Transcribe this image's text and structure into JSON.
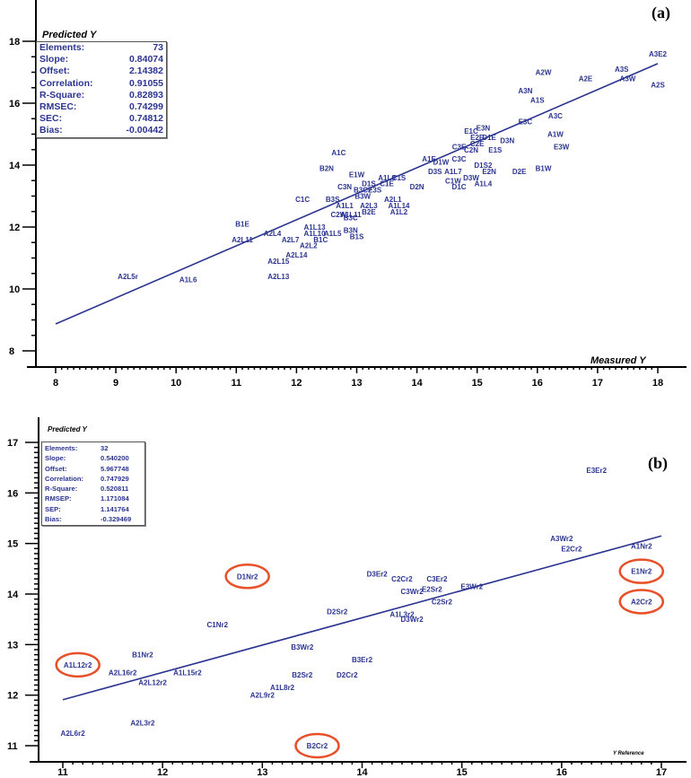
{
  "chart_data": [
    {
      "panel": "(a)",
      "type": "scatter",
      "xlabel": "Measured Y",
      "ylabel": "Predicted Y",
      "xlim": [
        7.7,
        18.2
      ],
      "ylim": [
        7.5,
        19.4
      ],
      "xticks": [
        8,
        9,
        10,
        11,
        12,
        13,
        14,
        15,
        16,
        17,
        18
      ],
      "yticks": [
        8,
        10,
        12,
        14,
        16,
        18
      ],
      "stats": {
        "Elements:": "73",
        "Slope:": "0.84074",
        "Offset:": "2.14382",
        "Correlation:": "0.91055",
        "R-Square:": "0.82893",
        "RMSEC:": "0.74299",
        "SEC:": "0.74812",
        "Bias:": "-0.00442"
      },
      "fit_line": {
        "x": [
          8.0,
          18.0
        ],
        "y": [
          8.87,
          17.28
        ]
      },
      "points": [
        {
          "label": "A2L5r",
          "x": 9.2,
          "y": 10.4
        },
        {
          "label": "A1L6",
          "x": 10.2,
          "y": 10.3
        },
        {
          "label": "A2L13",
          "x": 11.7,
          "y": 10.4
        },
        {
          "label": "A2L15",
          "x": 11.7,
          "y": 10.9
        },
        {
          "label": "A2L14",
          "x": 12.0,
          "y": 11.1
        },
        {
          "label": "A2L11",
          "x": 11.1,
          "y": 11.6
        },
        {
          "label": "B1E",
          "x": 11.1,
          "y": 12.1
        },
        {
          "label": "A2L4",
          "x": 11.6,
          "y": 11.8
        },
        {
          "label": "A2L7",
          "x": 11.9,
          "y": 11.6
        },
        {
          "label": "A2L2",
          "x": 12.2,
          "y": 11.4
        },
        {
          "label": "A1L13",
          "x": 12.3,
          "y": 12.0
        },
        {
          "label": "A1L10",
          "x": 12.3,
          "y": 11.8
        },
        {
          "label": "A1L5",
          "x": 12.6,
          "y": 11.8
        },
        {
          "label": "B1C",
          "x": 12.4,
          "y": 11.6
        },
        {
          "label": "C1C",
          "x": 12.1,
          "y": 12.9
        },
        {
          "label": "B3N",
          "x": 12.9,
          "y": 11.9
        },
        {
          "label": "B1S",
          "x": 13.0,
          "y": 11.7
        },
        {
          "label": "B3C",
          "x": 12.9,
          "y": 12.3
        },
        {
          "label": "C2W",
          "x": 12.7,
          "y": 12.4
        },
        {
          "label": "A1L11",
          "x": 12.9,
          "y": 12.4
        },
        {
          "label": "A1L1",
          "x": 12.8,
          "y": 12.7
        },
        {
          "label": "B3S",
          "x": 12.6,
          "y": 12.9
        },
        {
          "label": "A2L3",
          "x": 13.2,
          "y": 12.7
        },
        {
          "label": "B2E",
          "x": 13.2,
          "y": 12.5
        },
        {
          "label": "C3N",
          "x": 12.8,
          "y": 13.3
        },
        {
          "label": "B3W",
          "x": 13.1,
          "y": 13.0
        },
        {
          "label": "B3C2",
          "x": 13.1,
          "y": 13.2
        },
        {
          "label": "E3S",
          "x": 13.3,
          "y": 13.2
        },
        {
          "label": "D1S",
          "x": 13.2,
          "y": 13.4
        },
        {
          "label": "C1E",
          "x": 13.5,
          "y": 13.4
        },
        {
          "label": "A2L1",
          "x": 13.6,
          "y": 12.9
        },
        {
          "label": "A1L14",
          "x": 13.7,
          "y": 12.7
        },
        {
          "label": "A1L2",
          "x": 13.7,
          "y": 12.5
        },
        {
          "label": "E1W",
          "x": 13.0,
          "y": 13.7
        },
        {
          "label": "A1L9",
          "x": 13.5,
          "y": 13.6
        },
        {
          "label": "C1S",
          "x": 13.7,
          "y": 13.6
        },
        {
          "label": "B2N",
          "x": 12.5,
          "y": 13.9
        },
        {
          "label": "A1C",
          "x": 12.7,
          "y": 14.4
        },
        {
          "label": "D2N",
          "x": 14.0,
          "y": 13.3
        },
        {
          "label": "A1E",
          "x": 14.2,
          "y": 14.2
        },
        {
          "label": "D1W",
          "x": 14.4,
          "y": 14.1
        },
        {
          "label": "D3S",
          "x": 14.3,
          "y": 13.8
        },
        {
          "label": "A1L7",
          "x": 14.6,
          "y": 13.8
        },
        {
          "label": "C3C",
          "x": 14.7,
          "y": 14.2
        },
        {
          "label": "C1W",
          "x": 14.6,
          "y": 13.5
        },
        {
          "label": "D3W",
          "x": 14.9,
          "y": 13.6
        },
        {
          "label": "D1C",
          "x": 14.7,
          "y": 13.3
        },
        {
          "label": "A1L4",
          "x": 15.1,
          "y": 13.4
        },
        {
          "label": "C3E",
          "x": 14.7,
          "y": 14.6
        },
        {
          "label": "C2E",
          "x": 15.0,
          "y": 14.7
        },
        {
          "label": "C2N",
          "x": 14.9,
          "y": 14.5
        },
        {
          "label": "E2E",
          "x": 15.0,
          "y": 14.9
        },
        {
          "label": "D1E",
          "x": 15.2,
          "y": 14.9
        },
        {
          "label": "E1C",
          "x": 14.9,
          "y": 15.1
        },
        {
          "label": "E3N",
          "x": 15.1,
          "y": 15.2
        },
        {
          "label": "D3N",
          "x": 15.5,
          "y": 14.8
        },
        {
          "label": "E1S",
          "x": 15.3,
          "y": 14.5
        },
        {
          "label": "D1S2",
          "x": 15.1,
          "y": 14.0
        },
        {
          "label": "E2N",
          "x": 15.2,
          "y": 13.8
        },
        {
          "label": "D2E",
          "x": 15.7,
          "y": 13.8
        },
        {
          "label": "B1W",
          "x": 16.1,
          "y": 13.9
        },
        {
          "label": "E3C",
          "x": 15.8,
          "y": 15.4
        },
        {
          "label": "E3W",
          "x": 16.4,
          "y": 14.6
        },
        {
          "label": "A1W",
          "x": 16.3,
          "y": 15.0
        },
        {
          "label": "A3C",
          "x": 16.3,
          "y": 15.6
        },
        {
          "label": "A1S",
          "x": 16.0,
          "y": 16.1
        },
        {
          "label": "A3N",
          "x": 15.8,
          "y": 16.4
        },
        {
          "label": "A2W",
          "x": 16.1,
          "y": 17.0
        },
        {
          "label": "A2E",
          "x": 16.8,
          "y": 16.8
        },
        {
          "label": "A3S",
          "x": 17.4,
          "y": 17.1
        },
        {
          "label": "A3W",
          "x": 17.5,
          "y": 16.8
        },
        {
          "label": "A2S",
          "x": 18.0,
          "y": 16.6
        },
        {
          "label": "A3E2",
          "x": 18.0,
          "y": 17.6
        }
      ]
    },
    {
      "panel": "(b)",
      "type": "scatter",
      "xlabel": "Y Reference",
      "ylabel": "Predicted Y",
      "xlim": [
        10.75,
        17.05
      ],
      "ylim": [
        10.7,
        17.5
      ],
      "xticks": [
        11,
        12,
        13,
        14,
        15,
        16,
        17
      ],
      "yticks": [
        11,
        12,
        13,
        14,
        15,
        16,
        17
      ],
      "stats": {
        "Elements:": "32",
        "Slope:": "0.540200",
        "Offset:": "5.967748",
        "Correlation:": "0.747929",
        "R-Square:": "0.520811",
        "RMSEP:": "1.171084",
        "SEP:": "1.141764",
        "Bias:": "-0.329469"
      },
      "fit_line": {
        "x": [
          11.0,
          17.0
        ],
        "y": [
          11.91,
          15.15
        ]
      },
      "points": [
        {
          "label": "A2L6r2",
          "x": 11.1,
          "y": 11.25,
          "outlier": false
        },
        {
          "label": "A2L3r2",
          "x": 11.8,
          "y": 11.45,
          "outlier": false
        },
        {
          "label": "A1L12r2",
          "x": 11.15,
          "y": 12.6,
          "outlier": true
        },
        {
          "label": "A2L16r2",
          "x": 11.6,
          "y": 12.45,
          "outlier": false
        },
        {
          "label": "A2L12r2",
          "x": 11.9,
          "y": 12.25,
          "outlier": false
        },
        {
          "label": "A1L15r2",
          "x": 12.25,
          "y": 12.45,
          "outlier": false
        },
        {
          "label": "B1Nr2",
          "x": 11.8,
          "y": 12.8,
          "outlier": false
        },
        {
          "label": "C1Nr2",
          "x": 12.55,
          "y": 13.4,
          "outlier": false
        },
        {
          "label": "D1Nr2",
          "x": 12.85,
          "y": 14.35,
          "outlier": true
        },
        {
          "label": "A2L9r2",
          "x": 13.0,
          "y": 12.0,
          "outlier": false
        },
        {
          "label": "A1L8r2",
          "x": 13.2,
          "y": 12.15,
          "outlier": false
        },
        {
          "label": "B2Sr2",
          "x": 13.4,
          "y": 12.4,
          "outlier": false
        },
        {
          "label": "B3Wr2",
          "x": 13.4,
          "y": 12.95,
          "outlier": false
        },
        {
          "label": "B2Cr2",
          "x": 13.55,
          "y": 11.0,
          "outlier": true
        },
        {
          "label": "D2Cr2",
          "x": 13.85,
          "y": 12.4,
          "outlier": false
        },
        {
          "label": "B3Er2",
          "x": 14.0,
          "y": 12.7,
          "outlier": false
        },
        {
          "label": "D2Sr2",
          "x": 13.75,
          "y": 13.65,
          "outlier": false
        },
        {
          "label": "A1L3r2",
          "x": 14.4,
          "y": 13.6,
          "outlier": false
        },
        {
          "label": "D3Wr2",
          "x": 14.5,
          "y": 13.5,
          "outlier": false
        },
        {
          "label": "D3Er2",
          "x": 14.15,
          "y": 14.4,
          "outlier": false
        },
        {
          "label": "C2Cr2",
          "x": 14.4,
          "y": 14.3,
          "outlier": false
        },
        {
          "label": "C3Er2",
          "x": 14.75,
          "y": 14.3,
          "outlier": false
        },
        {
          "label": "C3Wr2",
          "x": 14.5,
          "y": 14.05,
          "outlier": false
        },
        {
          "label": "E2Sr2",
          "x": 14.7,
          "y": 14.1,
          "outlier": false
        },
        {
          "label": "C2Sr2",
          "x": 14.8,
          "y": 13.85,
          "outlier": false
        },
        {
          "label": "E3Wr2",
          "x": 15.1,
          "y": 14.15,
          "outlier": false
        },
        {
          "label": "A3Wr2",
          "x": 16.0,
          "y": 15.1,
          "outlier": false
        },
        {
          "label": "E2Cr2",
          "x": 16.1,
          "y": 14.9,
          "outlier": false
        },
        {
          "label": "E3Er2",
          "x": 16.35,
          "y": 16.45,
          "outlier": false
        },
        {
          "label": "A1Nr2",
          "x": 16.8,
          "y": 14.95,
          "outlier": false
        },
        {
          "label": "E1Nr2",
          "x": 16.8,
          "y": 14.45,
          "outlier": true
        },
        {
          "label": "A2Cr2",
          "x": 16.8,
          "y": 13.85,
          "outlier": true
        }
      ]
    }
  ],
  "labels": {
    "panel_a": "(a)",
    "panel_b": "(b)",
    "a_ylabel": "Predicted Y",
    "a_xlabel": "Measured Y",
    "b_ylabel": "Predicted Y",
    "b_xlabel": "Y Reference"
  },
  "colors": {
    "point_label": "#2b3590",
    "fit_line": "#2b3590",
    "outlier_ring": "#e8502a",
    "axis": "#000000"
  }
}
